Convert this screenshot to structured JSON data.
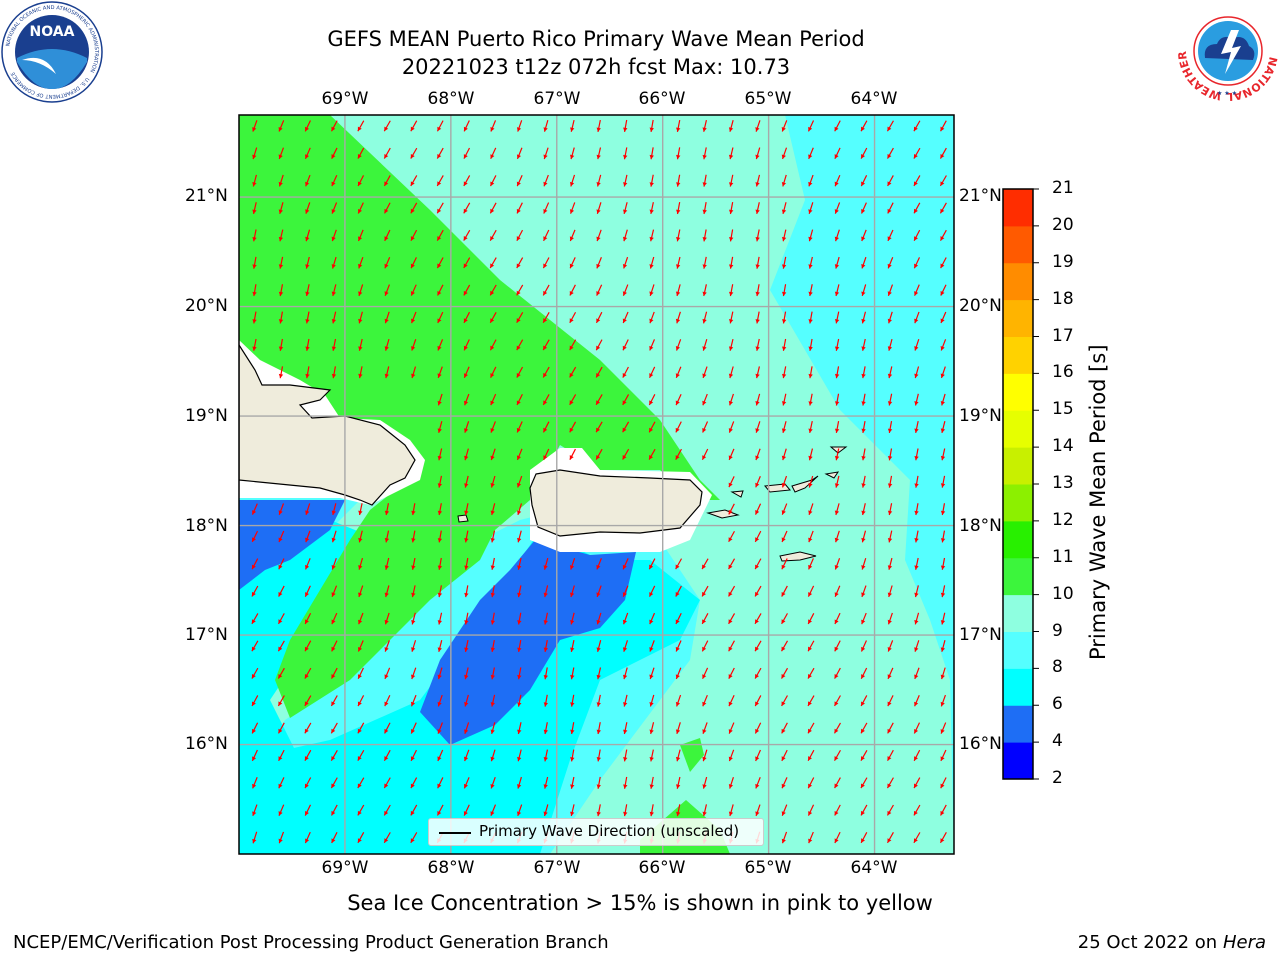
{
  "header": {
    "title_line1": "GEFS MEAN Puerto Rico Primary Wave Mean Period",
    "title_line2": "20221023 t12z 072h fcst   Max: 10.73"
  },
  "logos": {
    "noaa": {
      "text": "NOAA",
      "ring_text": "NATIONAL OCEANIC AND ATMOSPHERIC ADMINISTRATION",
      "ring_text_bottom": "U.S. DEPARTMENT OF COMMERCE",
      "color": "#1a3f8f"
    },
    "nws": {
      "ring_text": "NATIONAL WEATHER SERVICE",
      "color": "#e8262c"
    }
  },
  "chart_data": {
    "type": "heatmap",
    "title": "GEFS MEAN Puerto Rico Primary Wave Mean Period",
    "subtitle": "20221023 t12z 072h fcst   Max: 10.73",
    "variable_label": "Primary Wave Mean Period [s]",
    "max_value": 10.73,
    "lon_range": [
      -70,
      -63.25
    ],
    "lat_range": [
      15,
      21.75
    ],
    "lon_ticks": [
      "69°W",
      "68°W",
      "67°W",
      "66°W",
      "65°W",
      "64°W"
    ],
    "lat_ticks": [
      "21°N",
      "20°N",
      "19°N",
      "18°N",
      "17°N",
      "16°N"
    ],
    "grid": true,
    "colorbar": {
      "levels": [
        2,
        4,
        6,
        8,
        9,
        10,
        11,
        12,
        13,
        14,
        15,
        16,
        17,
        18,
        19,
        20,
        21
      ],
      "colors": [
        "#0000ff",
        "#1e6ef5",
        "#00ffff",
        "#55ffff",
        "#8effe0",
        "#3cf53c",
        "#28f000",
        "#8cf000",
        "#c8f000",
        "#e6ff00",
        "#ffff00",
        "#ffd200",
        "#ffb400",
        "#ff8c00",
        "#ff5a00",
        "#ff2d00",
        "#ff0000"
      ]
    },
    "wave_direction": {
      "label": "Primary Wave Direction (unscaled)",
      "arrow_color": "#ff0000",
      "direction_toward": "southwest"
    },
    "land_color": "#efecdc",
    "legend_position": "bottom-center"
  },
  "footer": {
    "note": "Sea Ice Concentration > 15% is shown in pink to yellow",
    "org": "NCEP/EMC/Verification Post Processing Product Generation Branch",
    "date": "25 Oct 2022 on ",
    "machine": "Hera"
  }
}
